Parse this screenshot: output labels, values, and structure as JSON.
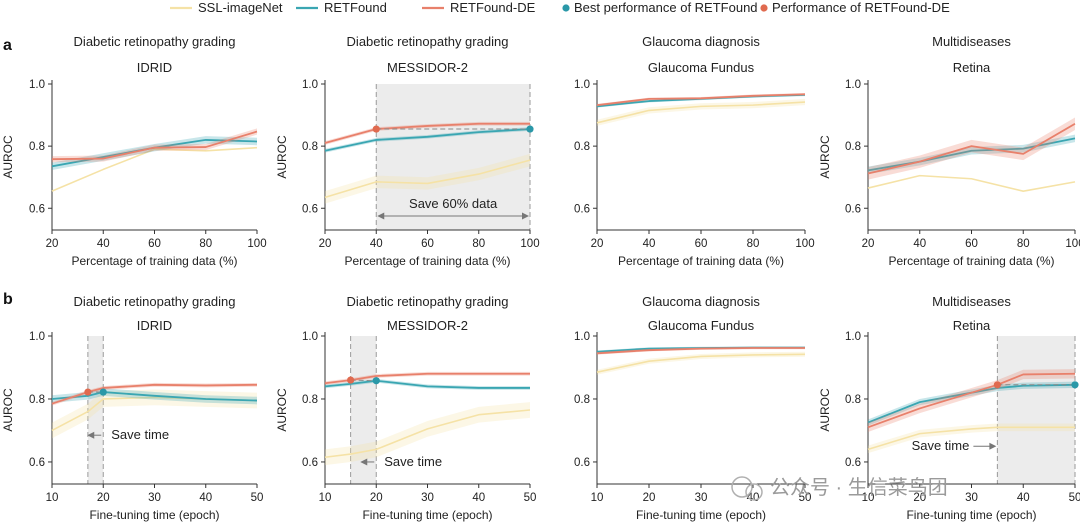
{
  "legend": [
    {
      "name": "SSL-imageNet",
      "kind": "line",
      "color": "#f5e2a6"
    },
    {
      "name": "RETFound",
      "kind": "line",
      "color": "#3aa6b2"
    },
    {
      "name": "RETFound-DE",
      "kind": "line",
      "color": "#e8806b"
    },
    {
      "name": "Best performance of RETFound",
      "kind": "dot",
      "color": "#2a98a8"
    },
    {
      "name": "Performance of RETFound-DE",
      "kind": "dot",
      "color": "#e06a4f"
    }
  ],
  "row_labels": [
    "a",
    "b"
  ],
  "colors": {
    "ssl": "#f5e2a6",
    "ret": "#3aa6b2",
    "de": "#e8806b",
    "ret_dot": "#2a98a8",
    "de_dot": "#e06a4f",
    "shade": "#ececec"
  },
  "watermark": "公众号 · 生信菜鸟团",
  "chart_data": [
    {
      "type": "line",
      "row": "a",
      "col": 0,
      "title": "Diabetic retinopathy grading",
      "subtitle": "IDRID",
      "xlabel": "Percentage of training data (%)",
      "ylabel": "AUROC",
      "x": [
        20,
        40,
        60,
        80,
        100
      ],
      "xlim": [
        20,
        100
      ],
      "xticks": [
        20,
        40,
        60,
        80,
        100
      ],
      "ylim": [
        0.53,
        1.0
      ],
      "yticks": [
        "1.0",
        "0.8",
        "0.6"
      ],
      "ytick_values": [
        1.0,
        0.8,
        0.6
      ],
      "series": [
        {
          "name": "SSL-imageNet",
          "values": [
            0.655,
            0.725,
            0.79,
            0.785,
            0.795
          ],
          "band": 0.0
        },
        {
          "name": "RETFound",
          "values": [
            0.735,
            0.765,
            0.795,
            0.82,
            0.815
          ],
          "band": 0.012
        },
        {
          "name": "RETFound-DE",
          "values": [
            0.758,
            0.76,
            0.795,
            0.797,
            0.847
          ],
          "band": 0.01
        }
      ]
    },
    {
      "type": "line",
      "row": "a",
      "col": 1,
      "title": "Diabetic retinopathy grading",
      "subtitle": "MESSIDOR-2",
      "xlabel": "Percentage of training data (%)",
      "ylabel": "AUROC",
      "x": [
        20,
        40,
        60,
        80,
        100
      ],
      "xlim": [
        20,
        100
      ],
      "xticks": [
        20,
        40,
        60,
        80,
        100
      ],
      "ylim": [
        0.53,
        1.0
      ],
      "yticks": [
        "1.0",
        "0.8",
        "0.6"
      ],
      "ytick_values": [
        1.0,
        0.8,
        0.6
      ],
      "series": [
        {
          "name": "SSL-imageNet",
          "values": [
            0.635,
            0.685,
            0.68,
            0.71,
            0.755
          ],
          "band": 0.02
        },
        {
          "name": "RETFound",
          "values": [
            0.785,
            0.82,
            0.83,
            0.845,
            0.855
          ],
          "band": 0.006
        },
        {
          "name": "RETFound-DE",
          "values": [
            0.81,
            0.855,
            0.865,
            0.872,
            0.872
          ],
          "band": 0.006
        }
      ],
      "shade_x": [
        40,
        100
      ],
      "points": [
        {
          "series": "RETFound-DE",
          "x": 40,
          "y": 0.855
        },
        {
          "series": "RETFound",
          "x": 100,
          "y": 0.855
        }
      ],
      "annotation": {
        "text": "Save 60% data",
        "type": "range",
        "x": [
          40,
          100
        ],
        "y": 0.575
      }
    },
    {
      "type": "line",
      "row": "a",
      "col": 2,
      "title": "Glaucoma diagnosis",
      "subtitle": "Glaucoma Fundus",
      "xlabel": "Percentage of training data (%)",
      "ylabel": "",
      "x": [
        20,
        40,
        60,
        80,
        100
      ],
      "xlim": [
        20,
        100
      ],
      "xticks": [
        20,
        40,
        60,
        80,
        100
      ],
      "ylim": [
        0.53,
        1.0
      ],
      "yticks": [
        "1.0",
        "0.8",
        "0.6"
      ],
      "ytick_values": [
        1.0,
        0.8,
        0.6
      ],
      "series": [
        {
          "name": "SSL-imageNet",
          "values": [
            0.875,
            0.915,
            0.928,
            0.932,
            0.942
          ],
          "band": 0.01
        },
        {
          "name": "RETFound",
          "values": [
            0.928,
            0.945,
            0.952,
            0.96,
            0.965
          ],
          "band": 0.004
        },
        {
          "name": "RETFound-DE",
          "values": [
            0.932,
            0.952,
            0.954,
            0.962,
            0.967
          ],
          "band": 0.004
        }
      ]
    },
    {
      "type": "line",
      "row": "a",
      "col": 3,
      "title": "Multidiseases",
      "subtitle": "Retina",
      "xlabel": "Percentage of training data (%)",
      "ylabel": "AUROC",
      "x": [
        20,
        40,
        60,
        80,
        100
      ],
      "xlim": [
        20,
        100
      ],
      "xticks": [
        20,
        40,
        60,
        80,
        100
      ],
      "ylim": [
        0.53,
        1.0
      ],
      "yticks": [
        "1.0",
        "0.8",
        "0.6"
      ],
      "ytick_values": [
        1.0,
        0.8,
        0.6
      ],
      "series": [
        {
          "name": "SSL-imageNet",
          "values": [
            0.665,
            0.705,
            0.695,
            0.655,
            0.685
          ],
          "band": 0.0
        },
        {
          "name": "RETFound",
          "values": [
            0.722,
            0.75,
            0.785,
            0.792,
            0.825
          ],
          "band": 0.012
        },
        {
          "name": "RETFound-DE",
          "values": [
            0.712,
            0.75,
            0.8,
            0.775,
            0.872
          ],
          "band": 0.02
        }
      ]
    },
    {
      "type": "line",
      "row": "b",
      "col": 0,
      "title": "Diabetic retinopathy grading",
      "subtitle": "IDRID",
      "xlabel": "Fine-tuning time (epoch)",
      "ylabel": "AUROC",
      "x": [
        10,
        17,
        20,
        30,
        40,
        50
      ],
      "xlim": [
        10,
        50
      ],
      "xticks": [
        10,
        20,
        30,
        40,
        50
      ],
      "ylim": [
        0.53,
        1.0
      ],
      "yticks": [
        "1.0",
        "0.8",
        "0.6"
      ],
      "ytick_values": [
        1.0,
        0.8,
        0.6
      ],
      "series": [
        {
          "name": "SSL-imageNet",
          "values": [
            0.7,
            0.76,
            0.8,
            0.805,
            0.8,
            0.795
          ],
          "band": 0.025
        },
        {
          "name": "RETFound",
          "values": [
            0.8,
            0.81,
            0.822,
            0.81,
            0.8,
            0.795
          ],
          "band": 0.012
        },
        {
          "name": "RETFound-DE",
          "values": [
            0.785,
            0.822,
            0.835,
            0.845,
            0.843,
            0.845
          ],
          "band": 0.006
        }
      ],
      "shade_x": [
        17,
        20
      ],
      "points": [
        {
          "series": "RETFound-DE",
          "x": 17,
          "y": 0.822
        },
        {
          "series": "RETFound",
          "x": 20,
          "y": 0.822
        }
      ],
      "annotation": {
        "text": "Save time",
        "type": "arrow-left",
        "x": 20,
        "y": 0.685
      }
    },
    {
      "type": "line",
      "row": "b",
      "col": 1,
      "title": "Diabetic retinopathy grading",
      "subtitle": "MESSIDOR-2",
      "xlabel": "Fine-tuning time (epoch)",
      "ylabel": "AUROC",
      "x": [
        10,
        15,
        20,
        30,
        40,
        50
      ],
      "xlim": [
        10,
        50
      ],
      "xticks": [
        10,
        20,
        30,
        40,
        50
      ],
      "ylim": [
        0.53,
        1.0
      ],
      "yticks": [
        "1.0",
        "0.8",
        "0.6"
      ],
      "ytick_values": [
        1.0,
        0.8,
        0.6
      ],
      "series": [
        {
          "name": "SSL-imageNet",
          "values": [
            0.615,
            0.625,
            0.64,
            0.705,
            0.75,
            0.765
          ],
          "band": 0.025
        },
        {
          "name": "RETFound",
          "values": [
            0.84,
            0.848,
            0.858,
            0.84,
            0.835,
            0.835
          ],
          "band": 0.006
        },
        {
          "name": "RETFound-DE",
          "values": [
            0.85,
            0.86,
            0.873,
            0.88,
            0.88,
            0.88
          ],
          "band": 0.006
        }
      ],
      "shade_x": [
        15,
        20
      ],
      "points": [
        {
          "series": "RETFound-DE",
          "x": 15,
          "y": 0.86
        },
        {
          "series": "RETFound",
          "x": 20,
          "y": 0.858
        }
      ],
      "annotation": {
        "text": "Save time",
        "type": "arrow-left",
        "x": 20,
        "y": 0.6
      }
    },
    {
      "type": "line",
      "row": "b",
      "col": 2,
      "title": "Glaucoma diagnosis",
      "subtitle": "Glaucoma Fundus",
      "xlabel": "Fine-tuning time (epoch)",
      "ylabel": "",
      "x": [
        10,
        20,
        30,
        40,
        50
      ],
      "xlim": [
        10,
        50
      ],
      "xticks": [
        10,
        20,
        30,
        40,
        50
      ],
      "ylim": [
        0.53,
        1.0
      ],
      "yticks": [
        "1.0",
        "0.8",
        "0.6"
      ],
      "ytick_values": [
        1.0,
        0.8,
        0.6
      ],
      "series": [
        {
          "name": "SSL-imageNet",
          "values": [
            0.885,
            0.92,
            0.935,
            0.94,
            0.942
          ],
          "band": 0.008
        },
        {
          "name": "RETFound",
          "values": [
            0.95,
            0.96,
            0.962,
            0.963,
            0.963
          ],
          "band": 0.004
        },
        {
          "name": "RETFound-DE",
          "values": [
            0.945,
            0.955,
            0.96,
            0.962,
            0.962
          ],
          "band": 0.004
        }
      ]
    },
    {
      "type": "line",
      "row": "b",
      "col": 3,
      "title": "Multidiseases",
      "subtitle": "Retina",
      "xlabel": "Fine-tuning time (epoch)",
      "ylabel": "AUROC",
      "x": [
        10,
        20,
        30,
        35,
        40,
        50
      ],
      "xlim": [
        10,
        50
      ],
      "xticks": [
        10,
        20,
        30,
        40,
        50
      ],
      "ylim": [
        0.53,
        1.0
      ],
      "yticks": [
        "1.0",
        "0.8",
        "0.6"
      ],
      "ytick_values": [
        1.0,
        0.8,
        0.6
      ],
      "series": [
        {
          "name": "SSL-imageNet",
          "values": [
            0.64,
            0.69,
            0.705,
            0.71,
            0.71,
            0.71
          ],
          "band": 0.012
        },
        {
          "name": "RETFound",
          "values": [
            0.725,
            0.79,
            0.82,
            0.835,
            0.842,
            0.845
          ],
          "band": 0.01
        },
        {
          "name": "RETFound-DE",
          "values": [
            0.71,
            0.77,
            0.82,
            0.845,
            0.878,
            0.88
          ],
          "band": 0.015
        }
      ],
      "shade_x": [
        35,
        50
      ],
      "points": [
        {
          "series": "RETFound-DE",
          "x": 35,
          "y": 0.845
        },
        {
          "series": "RETFound",
          "x": 50,
          "y": 0.845
        }
      ],
      "annotation": {
        "text": "Save time",
        "type": "arrow-right",
        "x": 35,
        "y": 0.65
      }
    }
  ]
}
